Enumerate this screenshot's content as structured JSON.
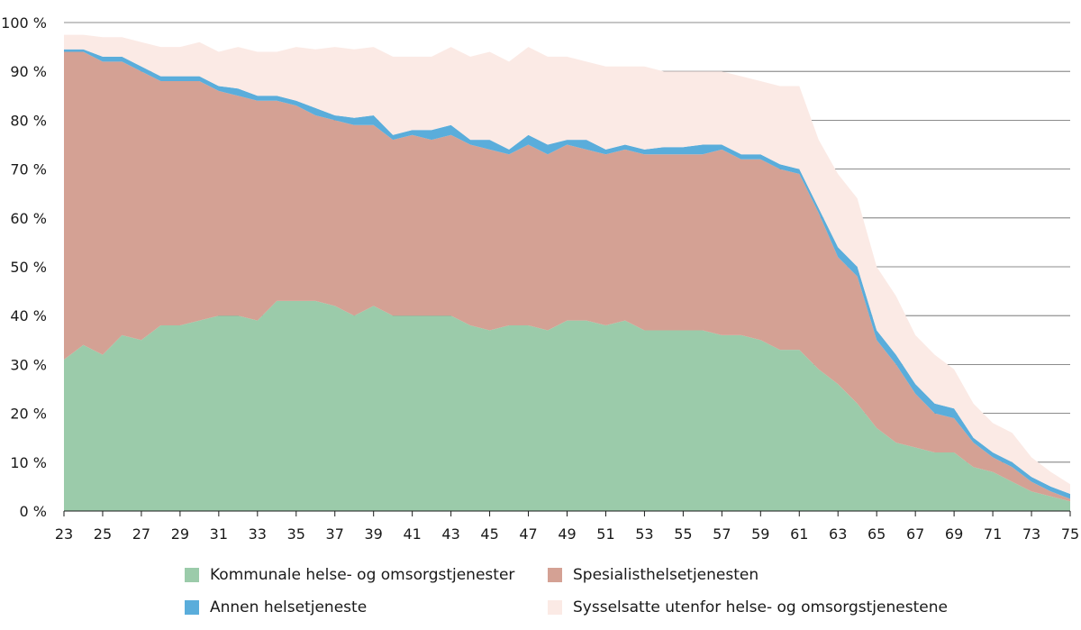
{
  "chart_data": {
    "type": "area",
    "stacked": true,
    "title": "",
    "xlabel": "",
    "ylabel": "",
    "ylim": [
      0,
      100
    ],
    "y_ticks": [
      "0 %",
      "10 %",
      "20 %",
      "30 %",
      "40 %",
      "50 %",
      "60 %",
      "70 %",
      "80 %",
      "90 %",
      "100 %"
    ],
    "x_ticks": [
      "23",
      "25",
      "27",
      "29",
      "31",
      "33",
      "35",
      "37",
      "39",
      "41",
      "43",
      "45",
      "47",
      "49",
      "51",
      "53",
      "55",
      "57",
      "59",
      "61",
      "63",
      "65",
      "67",
      "69",
      "71",
      "73",
      "75"
    ],
    "grid": "horizontal",
    "legend_position": "bottom",
    "x": [
      23,
      24,
      25,
      26,
      27,
      28,
      29,
      30,
      31,
      32,
      33,
      34,
      35,
      36,
      37,
      38,
      39,
      40,
      41,
      42,
      43,
      44,
      45,
      46,
      47,
      48,
      49,
      50,
      51,
      52,
      53,
      54,
      55,
      56,
      57,
      58,
      59,
      60,
      61,
      62,
      63,
      64,
      65,
      66,
      67,
      68,
      69,
      70,
      71,
      72,
      73,
      74,
      75
    ],
    "series": [
      {
        "name": "Kommunale helse- og omsorgstjenester",
        "color": "#9bcbaa",
        "values": [
          31,
          34,
          32,
          36,
          35,
          38,
          38,
          39,
          40,
          40,
          39,
          43,
          43,
          43,
          42,
          40,
          42,
          40,
          40,
          40,
          40,
          38,
          37,
          38,
          38,
          37,
          39,
          39,
          38,
          39,
          37,
          37,
          37,
          37,
          36,
          36,
          35,
          33,
          33,
          29,
          26,
          22,
          17,
          14,
          13,
          12,
          12,
          9,
          8,
          6,
          4,
          3,
          2
        ]
      },
      {
        "name": "Spesialisthelsetjenesten",
        "color": "#d4a194",
        "values": [
          63,
          60,
          60,
          56,
          55,
          50,
          50,
          49,
          46,
          45,
          45,
          41,
          40,
          38,
          38,
          39,
          37,
          36,
          37,
          36,
          37,
          37,
          37,
          35,
          37,
          36,
          36,
          35,
          35,
          35,
          36,
          36,
          36,
          36,
          38,
          36,
          37,
          37,
          36,
          32,
          26,
          26,
          18,
          16,
          11,
          8,
          7,
          5,
          3,
          3,
          2,
          1,
          0.5
        ]
      },
      {
        "name": "Annen helsetjeneste",
        "color": "#5aaddb",
        "values": [
          0.5,
          0.5,
          1,
          1,
          1,
          1,
          1,
          1,
          1,
          1.5,
          1,
          1,
          1,
          1.5,
          1,
          1.5,
          2,
          1,
          1,
          2,
          2,
          1,
          2,
          1,
          2,
          2,
          1,
          2,
          1,
          1,
          1,
          1.5,
          1.5,
          2,
          1,
          1,
          1,
          1,
          1,
          1,
          2,
          2,
          2,
          2,
          2,
          2,
          2,
          1,
          1,
          1,
          1,
          1,
          1
        ]
      },
      {
        "name": "Sysselsatte utenfor helse- og omsorgstjenestene",
        "color": "#fbeae5",
        "values": [
          3,
          3,
          4,
          4,
          5,
          6,
          6,
          7,
          7,
          8.5,
          9,
          9,
          11,
          12,
          14,
          14,
          14,
          16,
          15,
          15,
          16,
          17,
          18,
          18,
          18,
          18,
          17,
          16,
          17,
          16,
          17,
          15.5,
          15.5,
          15,
          15,
          16,
          15,
          16,
          17,
          14,
          15,
          14,
          13,
          12,
          10,
          10,
          8,
          7,
          6,
          6,
          4,
          3,
          2
        ]
      }
    ]
  }
}
